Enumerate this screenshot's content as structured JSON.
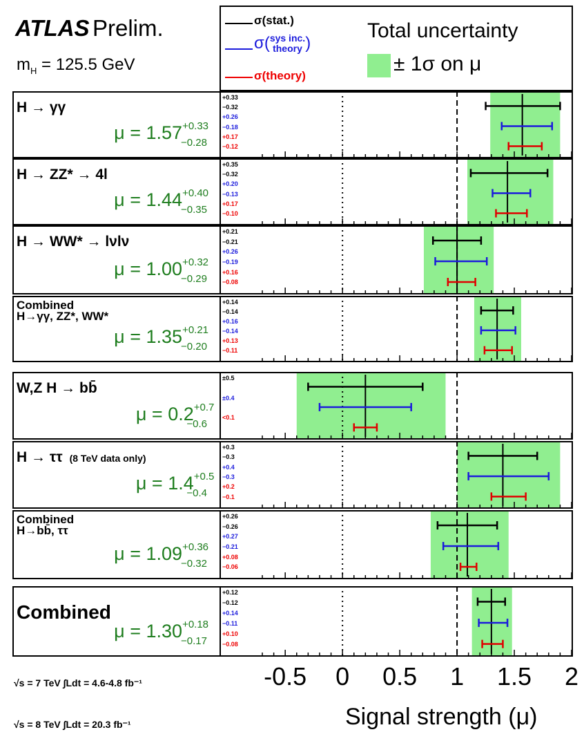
{
  "header": {
    "atlas": "ATLAS",
    "prelim": "Prelim.",
    "mass": "m",
    "mass_sub": "H",
    "mass_val": " = 125.5 GeV"
  },
  "legend": {
    "stat": "σ(stat.)",
    "sys_pre": "σ(",
    "sys_top": "sys inc.",
    "sys_bot": "theory",
    "sys_post": ")",
    "theory": "σ(theory)",
    "total_title": "Total uncertainty",
    "band": "± 1σ on μ"
  },
  "colors": {
    "band": "#90ee90",
    "stat": "#000000",
    "sys": "#1b1bdc",
    "theory": "#e00000",
    "mu_text": "#1e7d1e"
  },
  "axis": {
    "ticks": [
      "-0.5",
      "0",
      "0.5",
      "1",
      "1.5",
      "2"
    ],
    "xlabel": "Signal strength (μ)"
  },
  "lumi": {
    "l7": "√s = 7 TeV ∫Ldt = 4.6-4.8 fb⁻¹",
    "l8": "√s = 8 TeV ∫Ldt = 20.3 fb⁻¹"
  },
  "panels_text": [
    {
      "label": "H → γγ",
      "mu": "μ = 1.57",
      "up": "+0.33",
      "dn": "−0.28",
      "e": [
        "+0.33",
        "−0.32",
        "+0.26",
        "−0.18",
        "+0.17",
        "−0.12"
      ]
    },
    {
      "label": "H → ZZ* → 4l",
      "mu": "μ = 1.44",
      "up": "+0.40",
      "dn": "−0.35",
      "e": [
        "+0.35",
        "−0.32",
        "+0.20",
        "−0.13",
        "+0.17",
        "−0.10"
      ]
    },
    {
      "label": "H → WW* → lνlν",
      "mu": "μ = 1.00",
      "up": "+0.32",
      "dn": "−0.29",
      "e": [
        "+0.21",
        "−0.21",
        "+0.26",
        "−0.19",
        "+0.16",
        "−0.08"
      ]
    },
    {
      "label": "Combined",
      "label2": "H→γγ, ZZ*, WW*",
      "mu": "μ = 1.35",
      "up": "+0.21",
      "dn": "−0.20",
      "e": [
        "+0.14",
        "−0.14",
        "+0.16",
        "−0.14",
        "+0.13",
        "−0.11"
      ]
    },
    {
      "label": "W,Z H → bb̄",
      "mu": "μ = 0.2",
      "up": "+0.7",
      "dn": "−0.6",
      "e": [
        "±0.5",
        "",
        "±0.4",
        "",
        "<0.1",
        ""
      ]
    },
    {
      "label": "H → ττ",
      "label_extra": "(8 TeV data only)",
      "mu": "μ = 1.4",
      "up": "+0.5",
      "dn": "−0.4",
      "e": [
        "+0.3",
        "−0.3",
        "+0.4",
        "−0.3",
        "+0.2",
        "−0.1"
      ]
    },
    {
      "label": "Combined",
      "label2": "H→bb̄, ττ",
      "mu": "μ = 1.09",
      "up": "+0.36",
      "dn": "−0.32",
      "e": [
        "+0.26",
        "−0.26",
        "+0.27",
        "−0.21",
        "+0.08",
        "−0.06"
      ]
    },
    {
      "label": "Combined",
      "mu": "μ = 1.30",
      "up": "+0.18",
      "dn": "−0.17",
      "e": [
        "+0.12",
        "−0.12",
        "+0.14",
        "−0.11",
        "+0.10",
        "−0.08"
      ]
    }
  ],
  "chart_data": {
    "type": "scatter",
    "title": "",
    "xlabel": "Signal strength (μ)",
    "xlim": [
      -0.7,
      2.0
    ],
    "reference_lines": [
      0,
      1
    ],
    "series": [
      {
        "name": "σ(stat.)"
      },
      {
        "name": "σ(sys inc. theory)"
      },
      {
        "name": "σ(theory)"
      },
      {
        "name": "± 1σ on μ"
      }
    ],
    "points": [
      {
        "channel": "H → γγ",
        "mu": 1.57,
        "total": [
          1.29,
          1.9
        ],
        "stat": [
          1.25,
          1.9
        ],
        "sys": [
          1.39,
          1.83
        ],
        "theory": [
          1.45,
          1.74
        ]
      },
      {
        "channel": "H → ZZ* → 4l",
        "mu": 1.44,
        "total": [
          1.09,
          1.84
        ],
        "stat": [
          1.12,
          1.79
        ],
        "sys": [
          1.31,
          1.64
        ],
        "theory": [
          1.34,
          1.61
        ]
      },
      {
        "channel": "H → WW* → lνlν",
        "mu": 1.0,
        "total": [
          0.71,
          1.32
        ],
        "stat": [
          0.79,
          1.21
        ],
        "sys": [
          0.81,
          1.26
        ],
        "theory": [
          0.92,
          1.16
        ]
      },
      {
        "channel": "Combined H→γγ, ZZ*, WW*",
        "mu": 1.35,
        "total": [
          1.15,
          1.56
        ],
        "stat": [
          1.21,
          1.49
        ],
        "sys": [
          1.21,
          1.51
        ],
        "theory": [
          1.24,
          1.48
        ]
      },
      {
        "channel": "W,Z H → bb̄",
        "mu": 0.2,
        "total": [
          -0.4,
          0.9
        ],
        "stat": [
          -0.3,
          0.7
        ],
        "sys": [
          -0.2,
          0.6
        ],
        "theory": [
          0.1,
          0.3
        ]
      },
      {
        "channel": "H → ττ",
        "mu": 1.4,
        "total": [
          1.0,
          1.9
        ],
        "stat": [
          1.1,
          1.7
        ],
        "sys": [
          1.1,
          1.8
        ],
        "theory": [
          1.3,
          1.6
        ]
      },
      {
        "channel": "Combined H→bb̄, ττ",
        "mu": 1.09,
        "total": [
          0.77,
          1.45
        ],
        "stat": [
          0.83,
          1.35
        ],
        "sys": [
          0.88,
          1.36
        ],
        "theory": [
          1.03,
          1.17
        ]
      },
      {
        "channel": "Combined",
        "mu": 1.3,
        "total": [
          1.13,
          1.48
        ],
        "stat": [
          1.18,
          1.42
        ],
        "sys": [
          1.19,
          1.44
        ],
        "theory": [
          1.22,
          1.4
        ]
      }
    ]
  }
}
